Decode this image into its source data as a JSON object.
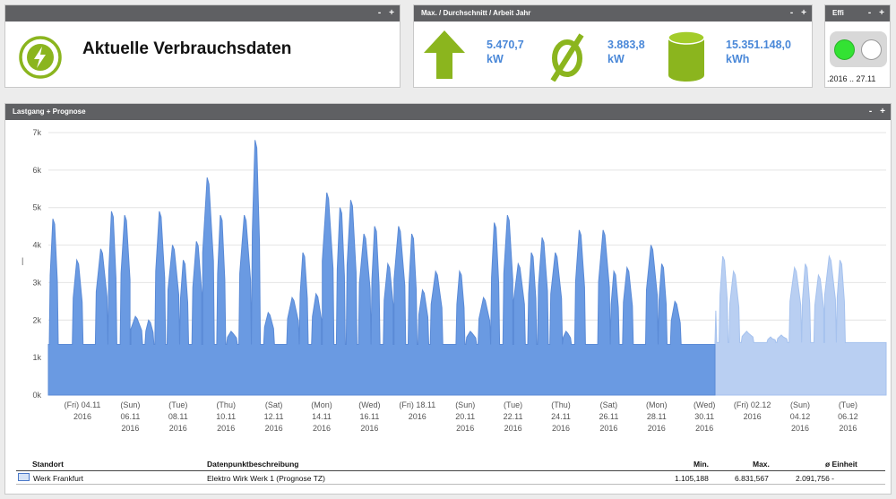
{
  "current_panel": {
    "title": "Aktuelle Verbrauchsdaten"
  },
  "stats_panel": {
    "header": "Max. / Durchschnitt / Arbeit Jahr",
    "max_value": "5.470,7",
    "max_unit": "kW",
    "avg_value": "3.883,8",
    "avg_unit": "kW",
    "work_value": "15.351.148,0",
    "work_unit": "kWh",
    "icons": [
      "arrow-up-icon",
      "average-icon",
      "cylinder-icon"
    ],
    "icon_color": "#8bb51e"
  },
  "effi_panel": {
    "header": "Effi",
    "range": ".2016 .. 27.11"
  },
  "panel_controls": {
    "minus": "-",
    "plus": "+"
  },
  "chart_panel": {
    "header": "Lastgang + Prognose",
    "y_axis_marker": "|"
  },
  "chart_data": {
    "type": "area",
    "colors": {
      "actual": "#6a9ae2",
      "forecast": "#b9cff2"
    },
    "ylim": [
      0,
      7000
    ],
    "y_ticks": [
      "0k",
      "1k",
      "2k",
      "3k",
      "4k",
      "5k",
      "6k",
      "7k"
    ],
    "x_ticks": [
      {
        "line1": "(Fri) 04.11",
        "line2": "2016"
      },
      {
        "line1": "(Sun)",
        "line2": "06.11",
        "line3": "2016"
      },
      {
        "line1": "(Tue)",
        "line2": "08.11",
        "line3": "2016"
      },
      {
        "line1": "(Thu)",
        "line2": "10.11",
        "line3": "2016"
      },
      {
        "line1": "(Sat)",
        "line2": "12.11",
        "line3": "2016"
      },
      {
        "line1": "(Mon)",
        "line2": "14.11",
        "line3": "2016"
      },
      {
        "line1": "(Wed)",
        "line2": "16.11",
        "line3": "2016"
      },
      {
        "line1": "(Fri) 18.11",
        "line2": "2016"
      },
      {
        "line1": "(Sun)",
        "line2": "20.11",
        "line3": "2016"
      },
      {
        "line1": "(Tue)",
        "line2": "22.11",
        "line3": "2016"
      },
      {
        "line1": "(Thu)",
        "line2": "24.11",
        "line3": "2016"
      },
      {
        "line1": "(Sat)",
        "line2": "26.11",
        "line3": "2016"
      },
      {
        "line1": "(Mon)",
        "line2": "28.11",
        "line3": "2016"
      },
      {
        "line1": "(Wed)",
        "line2": "30.11",
        "line3": "2016"
      },
      {
        "line1": "(Fri) 02.12",
        "line2": "2016"
      },
      {
        "line1": "(Sun)",
        "line2": "04.12",
        "line3": "2016"
      },
      {
        "line1": "(Tue)",
        "line2": "06.12",
        "line3": "2016"
      }
    ],
    "actual_base_kw": 1350,
    "forecast_base_kw": 1400,
    "actual_peaks": [
      {
        "date": "2016-11-04",
        "kw": 4700
      },
      {
        "date": "2016-11-05",
        "kw": 3600
      },
      {
        "date": "2016-11-06",
        "kw": 3900
      },
      {
        "date": "2016-11-06",
        "kw": 4900
      },
      {
        "date": "2016-11-07",
        "kw": 4800
      },
      {
        "date": "2016-11-07",
        "kw": 2100
      },
      {
        "date": "2016-11-08",
        "kw": 2000
      },
      {
        "date": "2016-11-08",
        "kw": 4900
      },
      {
        "date": "2016-11-09",
        "kw": 4000
      },
      {
        "date": "2016-11-09",
        "kw": 3600
      },
      {
        "date": "2016-11-10",
        "kw": 4100
      },
      {
        "date": "2016-11-10",
        "kw": 5800
      },
      {
        "date": "2016-11-11",
        "kw": 4800
      },
      {
        "date": "2016-11-11",
        "kw": 1700
      },
      {
        "date": "2016-11-12",
        "kw": 4800
      },
      {
        "date": "2016-11-12",
        "kw": 6800
      },
      {
        "date": "2016-11-13",
        "kw": 2200
      },
      {
        "date": "2016-11-14",
        "kw": 2600
      },
      {
        "date": "2016-11-14",
        "kw": 3800
      },
      {
        "date": "2016-11-15",
        "kw": 2700
      },
      {
        "date": "2016-11-15",
        "kw": 5400
      },
      {
        "date": "2016-11-16",
        "kw": 5000
      },
      {
        "date": "2016-11-16",
        "kw": 5200
      },
      {
        "date": "2016-11-17",
        "kw": 4300
      },
      {
        "date": "2016-11-17",
        "kw": 4500
      },
      {
        "date": "2016-11-18",
        "kw": 3500
      },
      {
        "date": "2016-11-18",
        "kw": 4500
      },
      {
        "date": "2016-11-19",
        "kw": 4300
      },
      {
        "date": "2016-11-19",
        "kw": 2800
      },
      {
        "date": "2016-11-20",
        "kw": 3300
      },
      {
        "date": "2016-11-21",
        "kw": 3300
      },
      {
        "date": "2016-11-21",
        "kw": 1700
      },
      {
        "date": "2016-11-22",
        "kw": 2600
      },
      {
        "date": "2016-11-22",
        "kw": 4600
      },
      {
        "date": "2016-11-23",
        "kw": 4800
      },
      {
        "date": "2016-11-23",
        "kw": 3500
      },
      {
        "date": "2016-11-24",
        "kw": 3800
      },
      {
        "date": "2016-11-24",
        "kw": 4200
      },
      {
        "date": "2016-11-25",
        "kw": 3800
      },
      {
        "date": "2016-11-25",
        "kw": 1700
      },
      {
        "date": "2016-11-26",
        "kw": 4400
      },
      {
        "date": "2016-11-27",
        "kw": 4400
      },
      {
        "date": "2016-11-27",
        "kw": 3300
      },
      {
        "date": "2016-11-28",
        "kw": 3400
      },
      {
        "date": "2016-11-29",
        "kw": 4000
      },
      {
        "date": "2016-11-29",
        "kw": 3500
      },
      {
        "date": "2016-11-30",
        "kw": 2500
      }
    ],
    "forecast_peaks": [
      {
        "date": "2016-11-30",
        "kw": 3400
      },
      {
        "date": "2016-12-01",
        "kw": 3600
      },
      {
        "date": "2016-12-01",
        "kw": 3100
      },
      {
        "date": "2016-12-02",
        "kw": 3700
      },
      {
        "date": "2016-12-02",
        "kw": 3300
      },
      {
        "date": "2016-12-03",
        "kw": 1700
      },
      {
        "date": "2016-12-04",
        "kw": 1550
      },
      {
        "date": "2016-12-04",
        "kw": 1600
      },
      {
        "date": "2016-12-05",
        "kw": 3400
      },
      {
        "date": "2016-12-05",
        "kw": 3500
      },
      {
        "date": "2016-12-06",
        "kw": 3200
      },
      {
        "date": "2016-12-06",
        "kw": 3700
      },
      {
        "date": "2016-12-06",
        "kw": 3600
      }
    ]
  },
  "table": {
    "headers": {
      "standort": "Standort",
      "beschreibung": "Datenpunktbeschreibung",
      "min": "Min.",
      "max": "Max.",
      "einheit": "ø Einheit"
    },
    "row": {
      "standort": "Werk Frankfurt",
      "beschreibung": "Elektro Wirk Werk 1 (Prognose TZ)",
      "min": "1.105,188",
      "max": "6.831,567",
      "avg": "2.091,756 -"
    }
  }
}
